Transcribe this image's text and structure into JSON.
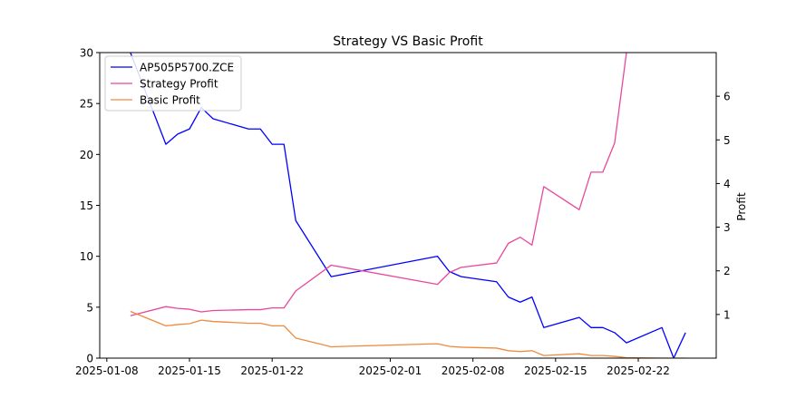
{
  "chart_data": {
    "type": "line",
    "title": "Strategy VS Basic Profit",
    "xlabel": "",
    "ylabel_left": "",
    "ylabel_right": "Profit",
    "ylim_left": [
      0,
      30
    ],
    "ylim_right": [
      0,
      7
    ],
    "x_ticks": [
      "2025-01-08",
      "2025-01-15",
      "2025-01-22",
      "2025-02-01",
      "2025-02-08",
      "2025-02-15",
      "2025-02-22"
    ],
    "y_left_ticks": [
      0,
      5,
      10,
      15,
      20,
      25,
      30
    ],
    "y_right_ticks": [
      1,
      2,
      3,
      4,
      5,
      6
    ],
    "grid": false,
    "legend_position": "top-left",
    "series": [
      {
        "name": "AP505P5700.ZCE",
        "axis": "left",
        "color": "#0000ff",
        "points": [
          [
            "2025-01-10",
            30.0
          ],
          [
            "2025-01-13",
            21.0
          ],
          [
            "2025-01-14",
            22.0
          ],
          [
            "2025-01-15",
            22.5
          ],
          [
            "2025-01-16",
            24.6
          ],
          [
            "2025-01-17",
            23.5
          ],
          [
            "2025-01-20",
            22.5
          ],
          [
            "2025-01-21",
            22.5
          ],
          [
            "2025-01-22",
            21.0
          ],
          [
            "2025-01-23",
            21.0
          ],
          [
            "2025-01-24",
            13.5
          ],
          [
            "2025-01-27",
            8.0
          ],
          [
            "2025-02-05",
            10.0
          ],
          [
            "2025-02-06",
            8.5
          ],
          [
            "2025-02-07",
            8.0
          ],
          [
            "2025-02-10",
            7.5
          ],
          [
            "2025-02-11",
            6.0
          ],
          [
            "2025-02-12",
            5.5
          ],
          [
            "2025-02-13",
            6.0
          ],
          [
            "2025-02-14",
            3.0
          ],
          [
            "2025-02-17",
            4.0
          ],
          [
            "2025-02-18",
            3.0
          ],
          [
            "2025-02-19",
            3.0
          ],
          [
            "2025-02-20",
            2.5
          ],
          [
            "2025-02-21",
            1.5
          ],
          [
            "2025-02-24",
            3.0
          ],
          [
            "2025-02-25",
            0.0
          ],
          [
            "2025-02-26",
            2.5
          ]
        ]
      },
      {
        "name": "Strategy Profit",
        "axis": "right",
        "color": "#e8489c",
        "points": [
          [
            "2025-01-10",
            0.97
          ],
          [
            "2025-01-13",
            1.18
          ],
          [
            "2025-01-14",
            1.14
          ],
          [
            "2025-01-15",
            1.12
          ],
          [
            "2025-01-16",
            1.06
          ],
          [
            "2025-01-17",
            1.09
          ],
          [
            "2025-01-20",
            1.11
          ],
          [
            "2025-01-21",
            1.11
          ],
          [
            "2025-01-22",
            1.15
          ],
          [
            "2025-01-23",
            1.15
          ],
          [
            "2025-01-24",
            1.54
          ],
          [
            "2025-01-27",
            2.13
          ],
          [
            "2025-02-05",
            1.69
          ],
          [
            "2025-02-06",
            1.96
          ],
          [
            "2025-02-07",
            2.08
          ],
          [
            "2025-02-10",
            2.18
          ],
          [
            "2025-02-11",
            2.63
          ],
          [
            "2025-02-12",
            2.77
          ],
          [
            "2025-02-13",
            2.59
          ],
          [
            "2025-02-14",
            3.93
          ],
          [
            "2025-02-17",
            3.4
          ],
          [
            "2025-02-18",
            4.26
          ],
          [
            "2025-02-19",
            4.26
          ],
          [
            "2025-02-20",
            4.93
          ],
          [
            "2025-02-21",
            7.0
          ]
        ]
      },
      {
        "name": "Basic Profit",
        "axis": "right",
        "color": "#f08a3c",
        "points": [
          [
            "2025-01-10",
            1.07
          ],
          [
            "2025-01-13",
            0.74
          ],
          [
            "2025-01-14",
            0.77
          ],
          [
            "2025-01-15",
            0.79
          ],
          [
            "2025-01-16",
            0.87
          ],
          [
            "2025-01-17",
            0.84
          ],
          [
            "2025-01-20",
            0.8
          ],
          [
            "2025-01-21",
            0.8
          ],
          [
            "2025-01-22",
            0.74
          ],
          [
            "2025-01-23",
            0.74
          ],
          [
            "2025-01-24",
            0.46
          ],
          [
            "2025-01-27",
            0.26
          ],
          [
            "2025-02-05",
            0.33
          ],
          [
            "2025-02-06",
            0.27
          ],
          [
            "2025-02-07",
            0.25
          ],
          [
            "2025-02-10",
            0.23
          ],
          [
            "2025-02-11",
            0.17
          ],
          [
            "2025-02-12",
            0.15
          ],
          [
            "2025-02-13",
            0.17
          ],
          [
            "2025-02-14",
            0.06
          ],
          [
            "2025-02-17",
            0.1
          ],
          [
            "2025-02-18",
            0.06
          ],
          [
            "2025-02-19",
            0.06
          ],
          [
            "2025-02-20",
            0.04
          ],
          [
            "2025-02-21",
            0.01
          ],
          [
            "2025-02-24",
            0.0
          ],
          [
            "2025-02-25",
            0.0
          ],
          [
            "2025-02-26",
            0.0
          ]
        ]
      }
    ]
  }
}
